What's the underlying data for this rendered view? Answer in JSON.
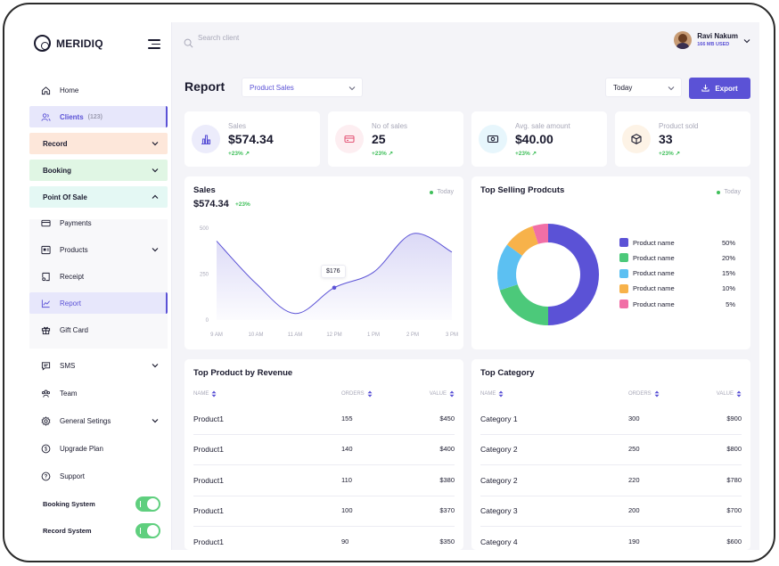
{
  "brand": {
    "name": "MERIDIQ"
  },
  "sidebar": {
    "items": [
      {
        "label": "Home",
        "icon": "home-icon"
      },
      {
        "label": "Clients",
        "badge": "(123)",
        "icon": "users-icon"
      },
      {
        "label": "Record",
        "bg": "#fde7da"
      },
      {
        "label": "Booking",
        "bg": "#e0f6e4"
      },
      {
        "label": "Point Of Sale",
        "bg": "#e4f8f4"
      },
      {
        "label": "Payments",
        "icon": "payments-icon"
      },
      {
        "label": "Products",
        "icon": "products-icon"
      },
      {
        "label": "Receipt",
        "icon": "receipt-icon"
      },
      {
        "label": "Report",
        "icon": "report-icon"
      },
      {
        "label": "Gift Card",
        "icon": "gift-icon"
      },
      {
        "label": "SMS",
        "icon": "sms-icon"
      },
      {
        "label": "Team",
        "icon": "team-icon"
      },
      {
        "label": "General Setings",
        "icon": "settings-icon"
      },
      {
        "label": "Upgrade Plan",
        "icon": "dollar-icon"
      },
      {
        "label": "Support",
        "icon": "help-icon"
      }
    ],
    "toggles": [
      {
        "label": "Booking System",
        "on": true
      },
      {
        "label": "Record System",
        "on": true
      }
    ]
  },
  "search": {
    "placeholder": "Search client"
  },
  "user": {
    "name": "Ravi Nakum",
    "storage": "166 MB USED"
  },
  "page": {
    "title": "Report",
    "report_select": "Product Sales",
    "period_select": "Today",
    "export_label": "Export"
  },
  "stats": [
    {
      "label": "Sales",
      "value": "$574.34",
      "change": "+23% ↗",
      "color": "#5b52d6",
      "bg": "#ececfb"
    },
    {
      "label": "No of sales",
      "value": "25",
      "change": "+23% ↗",
      "color": "#e45a7a",
      "bg": "#fdeef1"
    },
    {
      "label": "Avg. sale amount",
      "value": "$40.00",
      "change": "+23% ↗",
      "color": "#2f9fd0",
      "bg": "#e7f6fc"
    },
    {
      "label": "Product sold",
      "value": "33",
      "change": "+23% ↗",
      "color": "#d98b2b",
      "bg": "#fdf3e6"
    }
  ],
  "sales_chart": {
    "title": "Sales",
    "total": "$574.34",
    "change": "+23%",
    "period": "Today",
    "tooltip": "$176",
    "color": "#5b52d6"
  },
  "top_selling": {
    "title": "Top Selling Prodcuts",
    "period": "Today"
  },
  "top_products": {
    "title": "Top Product by Revenue",
    "headers": [
      "NAME",
      "ORDERS",
      "VALUE"
    ],
    "rows": [
      [
        "Product1",
        "155",
        "$450"
      ],
      [
        "Product1",
        "140",
        "$400"
      ],
      [
        "Product1",
        "110",
        "$380"
      ],
      [
        "Product1",
        "100",
        "$370"
      ],
      [
        "Product1",
        "90",
        "$350"
      ]
    ]
  },
  "top_category": {
    "title": "Top Category",
    "headers": [
      "NAME",
      "ORDERS",
      "VALUE"
    ],
    "rows": [
      [
        "Category 1",
        "300",
        "$900"
      ],
      [
        "Category 2",
        "250",
        "$800"
      ],
      [
        "Category 2",
        "220",
        "$780"
      ],
      [
        "Category 3",
        "200",
        "$700"
      ],
      [
        "Category 4",
        "190",
        "$600"
      ]
    ]
  },
  "chart_data": [
    {
      "type": "area",
      "title": "Sales",
      "x": [
        "9 AM",
        "10 AM",
        "11 AM",
        "12 PM",
        "1 PM",
        "2 PM",
        "3 PM"
      ],
      "series": [
        {
          "values": [
            430,
            200,
            35,
            176,
            260,
            470,
            370
          ]
        }
      ],
      "yticks": [
        0,
        250,
        500
      ],
      "ylim": [
        0,
        500
      ],
      "grid": false
    },
    {
      "type": "pie",
      "title": "Top Selling Prodcuts",
      "categories": [
        "Product name",
        "Product name",
        "Product name",
        "Product name",
        "Product name"
      ],
      "values": [
        50,
        20,
        15,
        10,
        5
      ],
      "labels": [
        "50%",
        "20%",
        "15%",
        "10%",
        "5%"
      ],
      "colors": [
        "#5b52d6",
        "#4cc97a",
        "#5cc0f2",
        "#f7b24a",
        "#f16fa6"
      ],
      "legend": "right"
    }
  ]
}
